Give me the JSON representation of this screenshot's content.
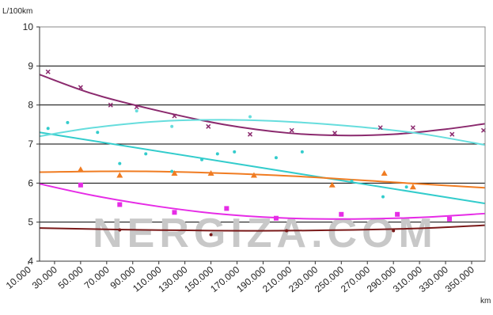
{
  "chart_data": {
    "type": "scatter",
    "ylabel": "L/100km",
    "xlabel": "km",
    "watermark": "NERGIZA.COM",
    "ylim": [
      4,
      10
    ],
    "xlim": [
      10000,
      360000
    ],
    "yticks": [
      "4",
      "5",
      "6",
      "7",
      "8",
      "9",
      "10"
    ],
    "xticks": [
      "10.000",
      "30.000",
      "50.000",
      "70.000",
      "90.000",
      "110.000",
      "130.000",
      "150.000",
      "170.000",
      "190.000",
      "210.000",
      "230.000",
      "250.000",
      "270.000",
      "290.000",
      "310.000",
      "330.000",
      "350.000"
    ],
    "xtick_values": [
      10000,
      30000,
      50000,
      70000,
      90000,
      110000,
      130000,
      150000,
      170000,
      190000,
      210000,
      230000,
      250000,
      270000,
      290000,
      310000,
      330000,
      350000
    ],
    "grid": "horizontal",
    "series": [
      {
        "color": "#8b2a6e",
        "marker": "x",
        "points": [
          [
            25000,
            8.85
          ],
          [
            50000,
            8.45
          ],
          [
            73000,
            8.0
          ],
          [
            93000,
            7.95
          ],
          [
            122000,
            7.72
          ],
          [
            148000,
            7.45
          ],
          [
            180000,
            7.25
          ],
          [
            212000,
            7.35
          ],
          [
            245000,
            7.28
          ],
          [
            280000,
            7.42
          ],
          [
            305000,
            7.42
          ],
          [
            335000,
            7.25
          ],
          [
            365000,
            7.35
          ]
        ],
        "trend": [
          [
            10000,
            8.78
          ],
          [
            60000,
            8.28
          ],
          [
            110000,
            7.85
          ],
          [
            160000,
            7.5
          ],
          [
            210000,
            7.28
          ],
          [
            250000,
            7.22
          ],
          [
            290000,
            7.25
          ],
          [
            330000,
            7.38
          ],
          [
            360000,
            7.52
          ]
        ]
      },
      {
        "color": "#33cccc",
        "marker": "dot",
        "points": [
          [
            25000,
            7.4
          ],
          [
            40000,
            7.55
          ],
          [
            63000,
            7.3
          ],
          [
            80000,
            6.5
          ],
          [
            100000,
            6.75
          ],
          [
            120000,
            6.3
          ],
          [
            143000,
            6.6
          ],
          [
            155000,
            6.75
          ],
          [
            168000,
            6.8
          ],
          [
            200000,
            6.65
          ],
          [
            220000,
            6.8
          ],
          [
            258000,
            6.05
          ],
          [
            282000,
            5.65
          ],
          [
            300000,
            5.9
          ]
        ],
        "trend": [
          [
            10000,
            7.3
          ],
          [
            360000,
            5.48
          ]
        ]
      },
      {
        "color": "#66dddd",
        "marker": "dot",
        "points": [
          [
            93000,
            7.85
          ],
          [
            120000,
            7.45
          ],
          [
            180000,
            7.7
          ]
        ],
        "trend": [
          [
            10000,
            7.2
          ],
          [
            60000,
            7.42
          ],
          [
            110000,
            7.58
          ],
          [
            160000,
            7.62
          ],
          [
            210000,
            7.57
          ],
          [
            260000,
            7.45
          ],
          [
            310000,
            7.27
          ],
          [
            360000,
            6.98
          ]
        ]
      },
      {
        "color": "#f07c22",
        "marker": "triangle",
        "points": [
          [
            50000,
            6.35
          ],
          [
            80000,
            6.2
          ],
          [
            122000,
            6.25
          ],
          [
            150000,
            6.25
          ],
          [
            183000,
            6.2
          ],
          [
            243000,
            5.95
          ],
          [
            283000,
            6.25
          ],
          [
            305000,
            5.9
          ]
        ],
        "trend": [
          [
            10000,
            6.28
          ],
          [
            100000,
            6.3
          ],
          [
            200000,
            6.2
          ],
          [
            300000,
            6.0
          ],
          [
            360000,
            5.88
          ]
        ]
      },
      {
        "color": "#e62ce6",
        "marker": "square",
        "points": [
          [
            50000,
            5.95
          ],
          [
            80000,
            5.45
          ],
          [
            122000,
            5.25
          ],
          [
            162000,
            5.35
          ],
          [
            200000,
            5.1
          ],
          [
            250000,
            5.2
          ],
          [
            293000,
            5.2
          ],
          [
            333000,
            5.08
          ]
        ],
        "trend": [
          [
            10000,
            5.98
          ],
          [
            60000,
            5.68
          ],
          [
            110000,
            5.4
          ],
          [
            160000,
            5.2
          ],
          [
            210000,
            5.1
          ],
          [
            260000,
            5.08
          ],
          [
            310000,
            5.12
          ],
          [
            360000,
            5.22
          ]
        ]
      },
      {
        "color": "#7a1a1a",
        "marker": "dot",
        "points": [
          [
            80000,
            4.8
          ],
          [
            150000,
            4.68
          ],
          [
            208000,
            4.78
          ],
          [
            290000,
            4.78
          ]
        ],
        "trend": [
          [
            10000,
            4.85
          ],
          [
            100000,
            4.8
          ],
          [
            200000,
            4.78
          ],
          [
            300000,
            4.83
          ],
          [
            360000,
            4.92
          ]
        ]
      }
    ]
  }
}
